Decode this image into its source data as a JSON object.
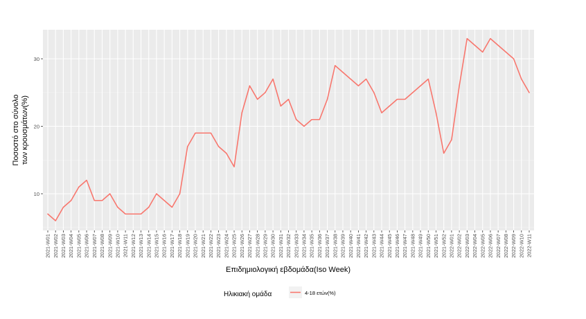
{
  "chart_data": {
    "type": "line",
    "title": "",
    "xlabel": "Επιδημιολογική εβδομάδα(Iso Week)",
    "ylabel_lines": [
      "Ποσοστό στο σύνολο",
      "των κρουσμάτων(%)"
    ],
    "ylim": [
      5,
      35
    ],
    "y_ticks": [
      10,
      20,
      30
    ],
    "grid": true,
    "legend": {
      "title": "Ηλικιακή ομάδα",
      "position": "bottom"
    },
    "categories": [
      "2021-W01",
      "2021-W02",
      "2021-W03",
      "2021-W04",
      "2021-W05",
      "2021-W06",
      "2021-W07",
      "2021-W08",
      "2021-W09",
      "2021-W10",
      "2021-W11",
      "2021-W12",
      "2021-W13",
      "2021-W14",
      "2021-W15",
      "2021-W16",
      "2021-W17",
      "2021-W18",
      "2021-W19",
      "2021-W20",
      "2021-W21",
      "2021-W22",
      "2021-W23",
      "2021-W24",
      "2021-W25",
      "2021-W26",
      "2021-W27",
      "2021-W28",
      "2021-W29",
      "2021-W30",
      "2021-W31",
      "2021-W32",
      "2021-W33",
      "2021-W34",
      "2021-W35",
      "2021-W36",
      "2021-W37",
      "2021-W38",
      "2021-W39",
      "2021-W40",
      "2021-W41",
      "2021-W42",
      "2021-W43",
      "2021-W44",
      "2021-W45",
      "2021-W46",
      "2021-W47",
      "2021-W48",
      "2021-W49",
      "2021-W50",
      "2021-W51",
      "2021-W52",
      "2022-W01",
      "2022-W02",
      "2022-W03",
      "2022-W04",
      "2022-W05",
      "2022-W06",
      "2022-W07",
      "2022-W08",
      "2022-W09",
      "2022-W10",
      "2022-W11"
    ],
    "series": [
      {
        "name": "4-18 ετών(%)",
        "color": "#F8766D",
        "values": [
          7,
          6,
          8,
          9,
          11,
          12,
          9,
          9,
          10,
          8,
          7,
          7,
          7,
          8,
          10,
          9,
          8,
          10,
          17,
          19,
          19,
          19,
          17,
          16,
          14,
          22,
          26,
          24,
          25,
          27,
          23,
          24,
          21,
          20,
          21,
          21,
          24,
          29,
          28,
          27,
          26,
          27,
          25,
          22,
          23,
          24,
          24,
          25,
          26,
          27,
          22,
          16,
          18,
          26,
          33,
          32,
          31,
          33,
          32,
          31,
          30,
          27,
          25
        ]
      }
    ]
  }
}
